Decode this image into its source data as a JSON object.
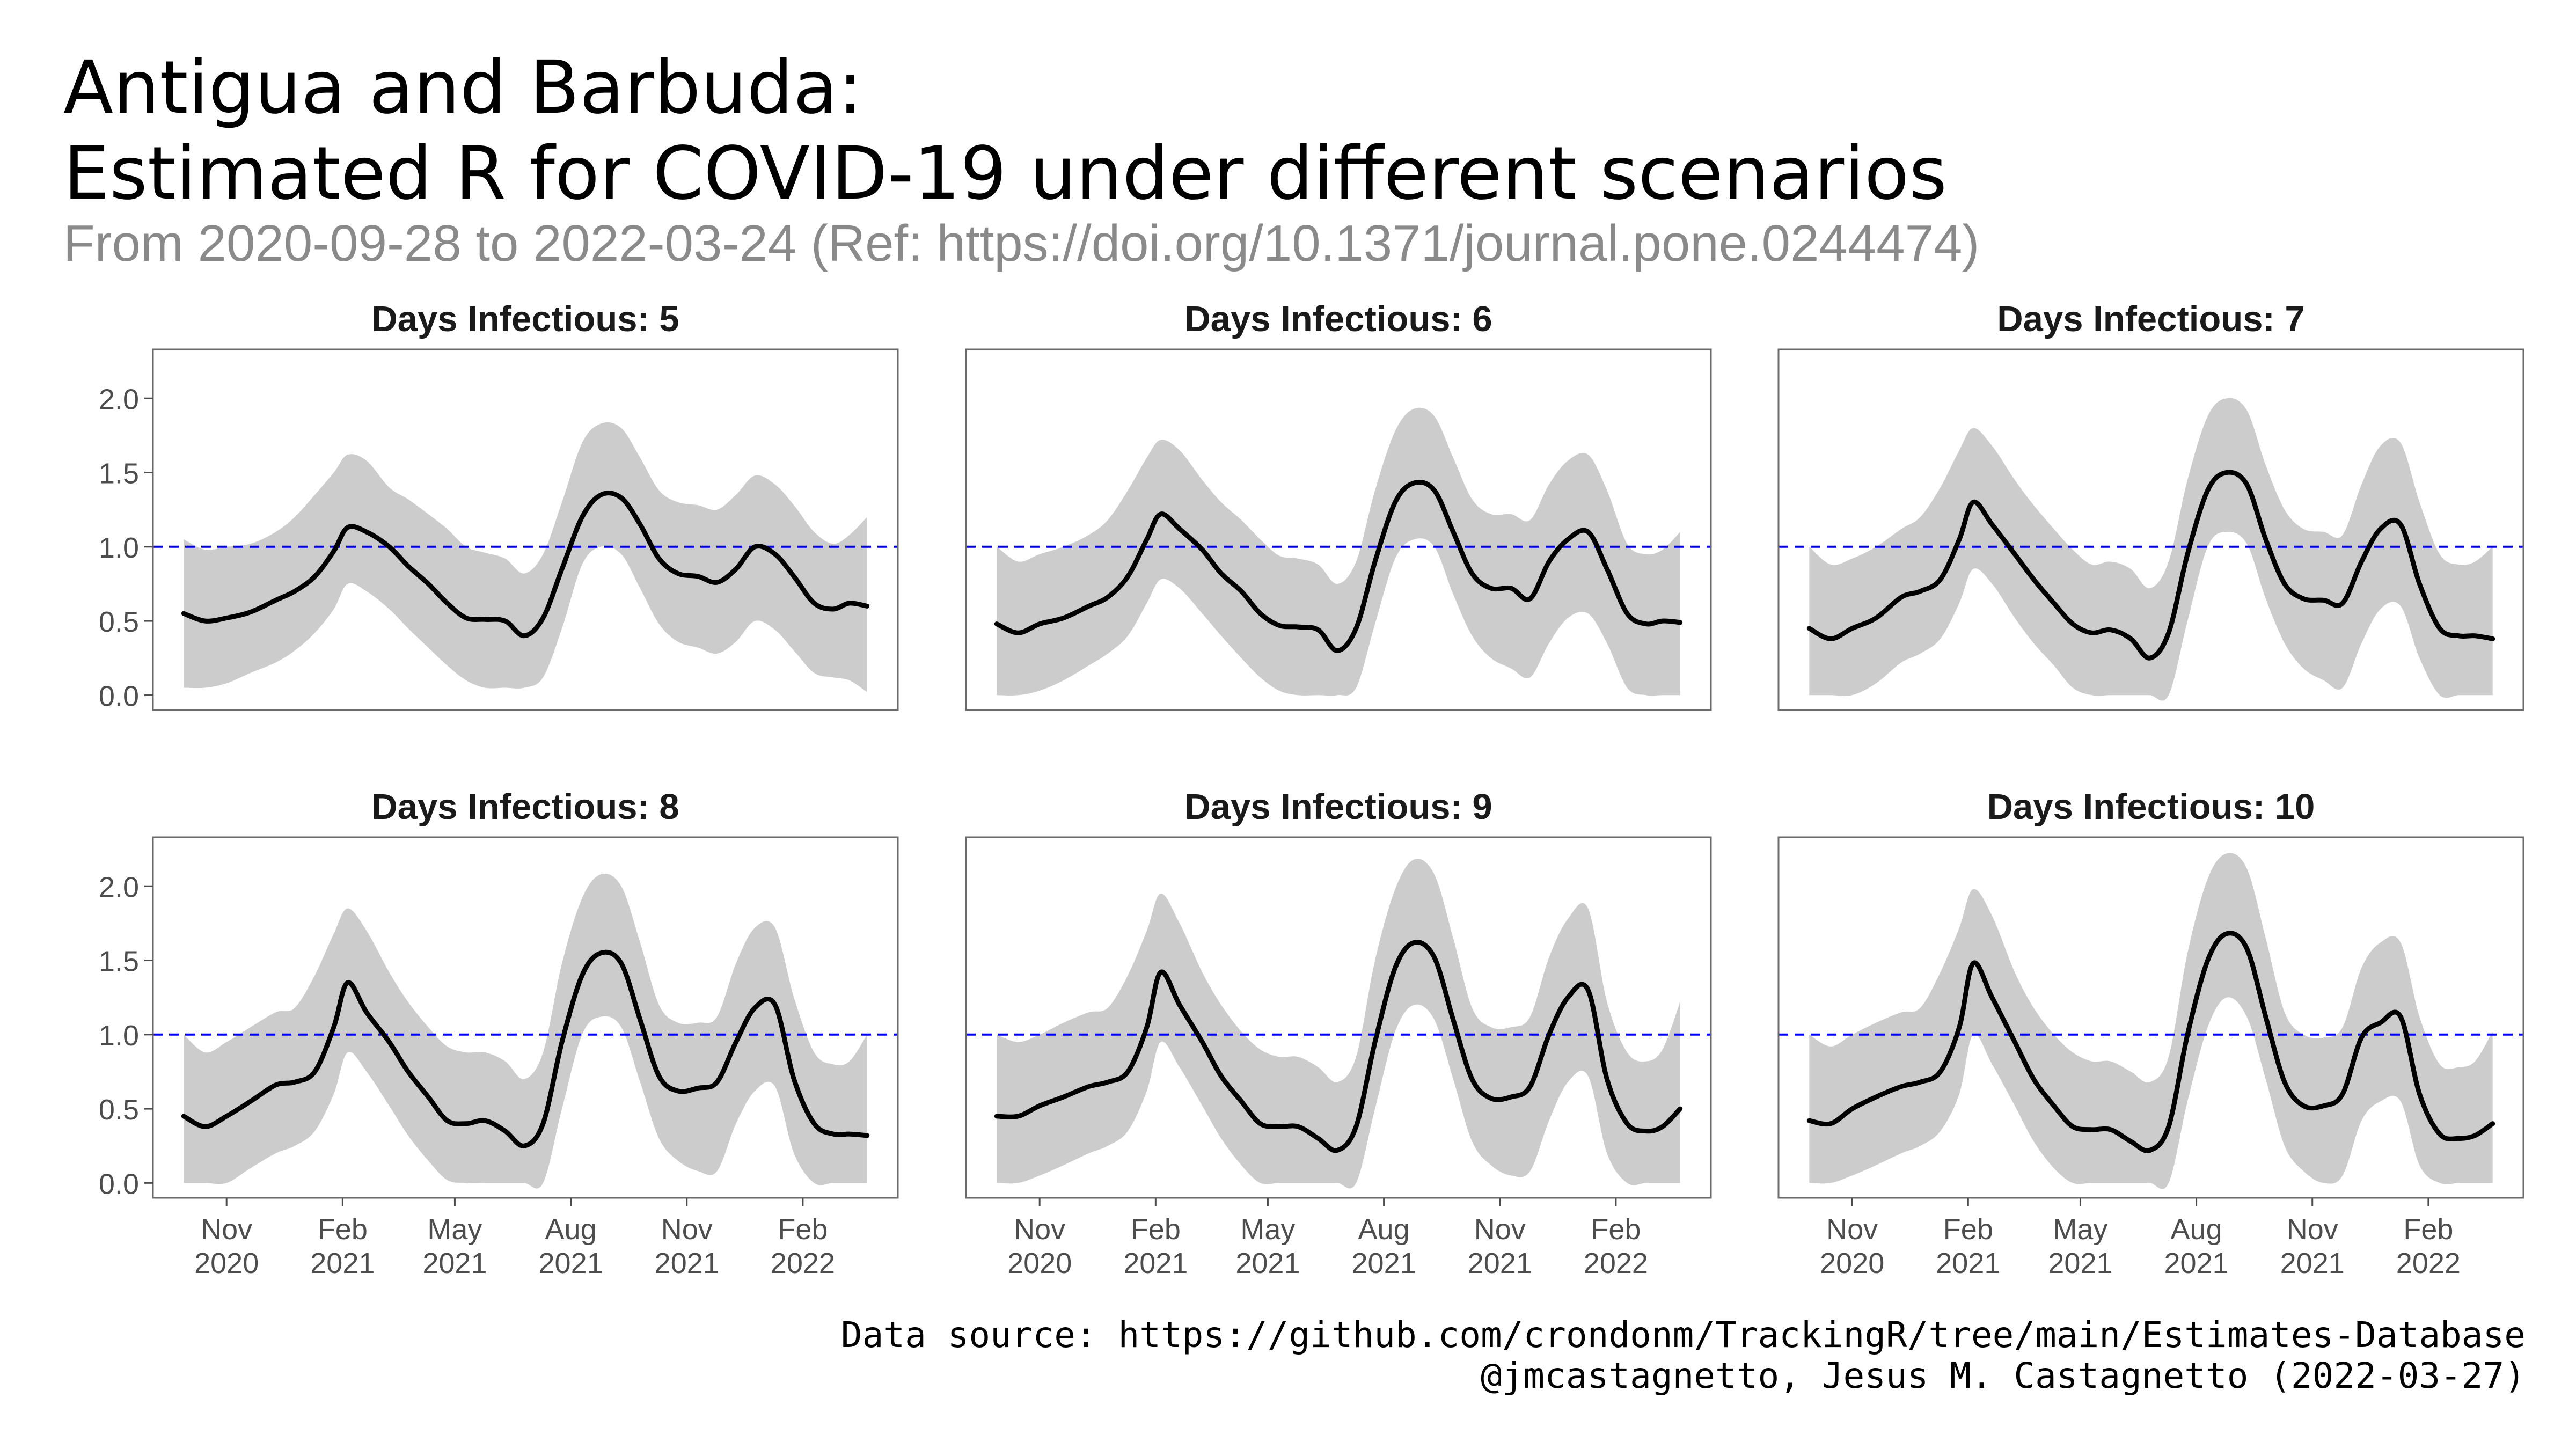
{
  "header": {
    "title_line1": "Antigua and Barbuda:",
    "title_line2": "Estimated R for COVID-19 under different scenarios",
    "subtitle": "From 2020-09-28 to 2022-03-24 (Ref: https://doi.org/10.1371/journal.pone.0244474)"
  },
  "caption": {
    "line1": "Data source: https://github.com/crondonm/TrackingR/tree/main/Estimates-Database",
    "line2": "@jmcastagnetto, Jesus M. Castagnetto (2022-03-27)"
  },
  "colors": {
    "ribbon": "#cccccc",
    "line": "#000000",
    "reference": "#0000ff",
    "panel_border": "#6b6b6b"
  },
  "chart_data": {
    "type": "line",
    "facet_by": "Days Infectious",
    "x_range": [
      "2020-09-28",
      "2022-03-24"
    ],
    "x_ticks": [
      {
        "date": "2020-11-01",
        "label": [
          "Nov",
          "2020"
        ]
      },
      {
        "date": "2021-02-01",
        "label": [
          "Feb",
          "2021"
        ]
      },
      {
        "date": "2021-05-01",
        "label": [
          "May",
          "2021"
        ]
      },
      {
        "date": "2021-08-01",
        "label": [
          "Aug",
          "2021"
        ]
      },
      {
        "date": "2021-11-01",
        "label": [
          "Nov",
          "2021"
        ]
      },
      {
        "date": "2022-02-01",
        "label": [
          "Feb",
          "2022"
        ]
      }
    ],
    "ylim": [
      -0.1,
      2.33
    ],
    "y_ticks": [
      0.0,
      0.5,
      1.0,
      1.5,
      2.0
    ],
    "y_tick_labels": [
      "0.0",
      "0.5",
      "1.0",
      "1.5",
      "2.0"
    ],
    "reference_line": 1.0,
    "grid": false,
    "panels": [
      {
        "title": "Days Infectious: 5",
        "x": [
          "2020-09-28",
          "2020-10-15",
          "2020-11-01",
          "2020-11-20",
          "2020-12-10",
          "2020-12-25",
          "2021-01-10",
          "2021-01-25",
          "2021-02-05",
          "2021-02-20",
          "2021-03-10",
          "2021-03-25",
          "2021-04-10",
          "2021-04-25",
          "2021-05-10",
          "2021-05-25",
          "2021-06-10",
          "2021-06-25",
          "2021-07-10",
          "2021-07-25",
          "2021-08-10",
          "2021-08-25",
          "2021-09-10",
          "2021-09-25",
          "2021-10-10",
          "2021-10-25",
          "2021-11-10",
          "2021-11-25",
          "2021-12-10",
          "2021-12-25",
          "2022-01-10",
          "2022-01-25",
          "2022-02-10",
          "2022-02-25",
          "2022-03-10",
          "2022-03-24"
        ],
        "r": [
          0.55,
          0.5,
          0.52,
          0.56,
          0.64,
          0.7,
          0.8,
          0.97,
          1.13,
          1.1,
          1.0,
          0.87,
          0.75,
          0.62,
          0.52,
          0.51,
          0.5,
          0.4,
          0.52,
          0.85,
          1.2,
          1.35,
          1.33,
          1.15,
          0.92,
          0.82,
          0.8,
          0.76,
          0.85,
          1.0,
          0.95,
          0.8,
          0.62,
          0.58,
          0.62,
          0.6
        ],
        "lower": [
          0.05,
          0.05,
          0.08,
          0.15,
          0.22,
          0.3,
          0.42,
          0.58,
          0.75,
          0.7,
          0.58,
          0.45,
          0.32,
          0.2,
          0.1,
          0.05,
          0.05,
          0.05,
          0.12,
          0.45,
          0.88,
          1.0,
          0.95,
          0.72,
          0.48,
          0.36,
          0.32,
          0.28,
          0.36,
          0.5,
          0.44,
          0.3,
          0.15,
          0.12,
          0.1,
          0.02
        ],
        "upper": [
          1.05,
          0.98,
          1.0,
          1.02,
          1.1,
          1.2,
          1.35,
          1.5,
          1.62,
          1.58,
          1.4,
          1.32,
          1.22,
          1.12,
          1.0,
          0.96,
          0.92,
          0.82,
          0.95,
          1.3,
          1.7,
          1.83,
          1.8,
          1.6,
          1.38,
          1.3,
          1.28,
          1.25,
          1.35,
          1.48,
          1.42,
          1.28,
          1.1,
          1.02,
          1.08,
          1.2
        ]
      },
      {
        "title": "Days Infectious: 6",
        "x": [
          "2020-09-28",
          "2020-10-15",
          "2020-11-01",
          "2020-11-20",
          "2020-12-10",
          "2020-12-25",
          "2021-01-10",
          "2021-01-25",
          "2021-02-05",
          "2021-02-20",
          "2021-03-10",
          "2021-03-25",
          "2021-04-10",
          "2021-04-25",
          "2021-05-10",
          "2021-05-25",
          "2021-06-10",
          "2021-06-25",
          "2021-07-10",
          "2021-07-25",
          "2021-08-10",
          "2021-08-25",
          "2021-09-10",
          "2021-09-25",
          "2021-10-10",
          "2021-10-25",
          "2021-11-10",
          "2021-11-25",
          "2021-12-10",
          "2021-12-25",
          "2022-01-10",
          "2022-01-25",
          "2022-02-10",
          "2022-02-25",
          "2022-03-10",
          "2022-03-24"
        ],
        "r": [
          0.48,
          0.42,
          0.48,
          0.52,
          0.6,
          0.66,
          0.8,
          1.05,
          1.22,
          1.12,
          0.98,
          0.82,
          0.7,
          0.55,
          0.47,
          0.46,
          0.44,
          0.3,
          0.45,
          0.9,
          1.3,
          1.43,
          1.38,
          1.1,
          0.82,
          0.72,
          0.72,
          0.65,
          0.9,
          1.05,
          1.1,
          0.85,
          0.55,
          0.48,
          0.5,
          0.49
        ],
        "lower": [
          0.0,
          0.0,
          0.03,
          0.1,
          0.2,
          0.28,
          0.4,
          0.62,
          0.78,
          0.72,
          0.55,
          0.4,
          0.25,
          0.12,
          0.03,
          0.0,
          0.0,
          0.0,
          0.05,
          0.48,
          0.92,
          1.05,
          1.0,
          0.68,
          0.4,
          0.25,
          0.18,
          0.12,
          0.35,
          0.52,
          0.55,
          0.35,
          0.05,
          0.0,
          0.0,
          0.0
        ],
        "upper": [
          1.0,
          0.9,
          0.95,
          1.0,
          1.08,
          1.18,
          1.38,
          1.6,
          1.72,
          1.65,
          1.45,
          1.3,
          1.18,
          1.05,
          0.94,
          0.92,
          0.88,
          0.75,
          0.9,
          1.38,
          1.78,
          1.93,
          1.88,
          1.6,
          1.32,
          1.22,
          1.22,
          1.18,
          1.42,
          1.58,
          1.62,
          1.38,
          1.02,
          0.95,
          0.98,
          1.1
        ]
      },
      {
        "title": "Days Infectious: 7",
        "x": [
          "2020-09-28",
          "2020-10-15",
          "2020-11-01",
          "2020-11-20",
          "2020-12-10",
          "2020-12-25",
          "2021-01-10",
          "2021-01-25",
          "2021-02-05",
          "2021-02-20",
          "2021-03-10",
          "2021-03-25",
          "2021-04-10",
          "2021-04-25",
          "2021-05-10",
          "2021-05-25",
          "2021-06-10",
          "2021-06-25",
          "2021-07-10",
          "2021-07-25",
          "2021-08-10",
          "2021-08-25",
          "2021-09-10",
          "2021-09-25",
          "2021-10-10",
          "2021-10-25",
          "2021-11-10",
          "2021-11-25",
          "2021-12-10",
          "2021-12-25",
          "2022-01-10",
          "2022-01-25",
          "2022-02-10",
          "2022-02-25",
          "2022-03-10",
          "2022-03-24"
        ],
        "r": [
          0.45,
          0.38,
          0.45,
          0.52,
          0.66,
          0.7,
          0.78,
          1.05,
          1.3,
          1.15,
          0.95,
          0.78,
          0.62,
          0.48,
          0.42,
          0.44,
          0.38,
          0.25,
          0.42,
          0.95,
          1.38,
          1.5,
          1.42,
          1.05,
          0.75,
          0.65,
          0.64,
          0.62,
          0.9,
          1.12,
          1.15,
          0.75,
          0.45,
          0.4,
          0.4,
          0.38
        ],
        "lower": [
          0.0,
          0.0,
          0.0,
          0.08,
          0.22,
          0.28,
          0.38,
          0.62,
          0.85,
          0.75,
          0.52,
          0.35,
          0.2,
          0.05,
          0.0,
          0.0,
          0.0,
          0.0,
          0.0,
          0.5,
          1.0,
          1.1,
          1.02,
          0.65,
          0.35,
          0.18,
          0.1,
          0.05,
          0.35,
          0.58,
          0.6,
          0.25,
          0.0,
          0.0,
          0.0,
          0.0
        ],
        "upper": [
          1.0,
          0.88,
          0.92,
          1.0,
          1.12,
          1.2,
          1.4,
          1.65,
          1.8,
          1.68,
          1.45,
          1.28,
          1.12,
          0.98,
          0.88,
          0.9,
          0.85,
          0.72,
          0.9,
          1.45,
          1.88,
          2.0,
          1.92,
          1.55,
          1.25,
          1.12,
          1.1,
          1.08,
          1.42,
          1.68,
          1.7,
          1.3,
          0.95,
          0.88,
          0.9,
          1.0
        ]
      },
      {
        "title": "Days Infectious: 8",
        "x": [
          "2020-09-28",
          "2020-10-15",
          "2020-11-01",
          "2020-11-20",
          "2020-12-10",
          "2020-12-25",
          "2021-01-10",
          "2021-01-25",
          "2021-02-05",
          "2021-02-20",
          "2021-03-10",
          "2021-03-25",
          "2021-04-10",
          "2021-04-25",
          "2021-05-10",
          "2021-05-25",
          "2021-06-10",
          "2021-06-25",
          "2021-07-10",
          "2021-07-25",
          "2021-08-10",
          "2021-08-25",
          "2021-09-10",
          "2021-09-25",
          "2021-10-10",
          "2021-10-25",
          "2021-11-10",
          "2021-11-25",
          "2021-12-10",
          "2021-12-25",
          "2022-01-10",
          "2022-01-25",
          "2022-02-10",
          "2022-02-25",
          "2022-03-10",
          "2022-03-24"
        ],
        "r": [
          0.45,
          0.38,
          0.45,
          0.55,
          0.66,
          0.68,
          0.75,
          1.05,
          1.35,
          1.15,
          0.95,
          0.75,
          0.58,
          0.42,
          0.4,
          0.42,
          0.35,
          0.25,
          0.4,
          0.95,
          1.4,
          1.55,
          1.48,
          1.1,
          0.72,
          0.62,
          0.64,
          0.68,
          0.95,
          1.18,
          1.2,
          0.7,
          0.4,
          0.33,
          0.33,
          0.32
        ],
        "lower": [
          0.0,
          0.0,
          0.0,
          0.1,
          0.2,
          0.25,
          0.35,
          0.6,
          0.88,
          0.75,
          0.52,
          0.32,
          0.15,
          0.02,
          0.0,
          0.0,
          0.0,
          0.0,
          0.0,
          0.5,
          1.0,
          1.12,
          1.05,
          0.68,
          0.3,
          0.15,
          0.08,
          0.08,
          0.4,
          0.62,
          0.65,
          0.2,
          0.0,
          0.0,
          0.0,
          0.0
        ],
        "upper": [
          1.0,
          0.88,
          0.95,
          1.05,
          1.15,
          1.18,
          1.4,
          1.68,
          1.85,
          1.7,
          1.42,
          1.22,
          1.05,
          0.92,
          0.88,
          0.88,
          0.82,
          0.7,
          0.88,
          1.48,
          1.92,
          2.08,
          2.0,
          1.62,
          1.2,
          1.08,
          1.08,
          1.12,
          1.48,
          1.72,
          1.72,
          1.25,
          0.88,
          0.8,
          0.82,
          1.0
        ]
      },
      {
        "title": "Days Infectious: 9",
        "x": [
          "2020-09-28",
          "2020-10-15",
          "2020-11-01",
          "2020-11-20",
          "2020-12-10",
          "2020-12-25",
          "2021-01-10",
          "2021-01-25",
          "2021-02-05",
          "2021-02-20",
          "2021-03-10",
          "2021-03-25",
          "2021-04-10",
          "2021-04-25",
          "2021-05-10",
          "2021-05-25",
          "2021-06-10",
          "2021-06-25",
          "2021-07-10",
          "2021-07-25",
          "2021-08-10",
          "2021-08-25",
          "2021-09-10",
          "2021-09-25",
          "2021-10-10",
          "2021-10-25",
          "2021-11-10",
          "2021-11-25",
          "2021-12-10",
          "2021-12-25",
          "2022-01-10",
          "2022-01-25",
          "2022-02-10",
          "2022-02-25",
          "2022-03-10",
          "2022-03-24"
        ],
        "r": [
          0.45,
          0.45,
          0.52,
          0.58,
          0.65,
          0.68,
          0.75,
          1.05,
          1.42,
          1.2,
          0.95,
          0.72,
          0.55,
          0.4,
          0.38,
          0.38,
          0.3,
          0.22,
          0.38,
          0.95,
          1.45,
          1.62,
          1.52,
          1.1,
          0.7,
          0.57,
          0.58,
          0.65,
          1.0,
          1.25,
          1.3,
          0.7,
          0.4,
          0.35,
          0.38,
          0.5
        ],
        "lower": [
          0.0,
          0.0,
          0.05,
          0.12,
          0.2,
          0.25,
          0.35,
          0.62,
          0.95,
          0.78,
          0.52,
          0.3,
          0.12,
          0.0,
          0.0,
          0.0,
          0.0,
          0.0,
          0.0,
          0.5,
          1.02,
          1.2,
          1.1,
          0.7,
          0.28,
          0.12,
          0.05,
          0.08,
          0.42,
          0.68,
          0.72,
          0.2,
          0.0,
          0.0,
          0.0,
          0.0
        ],
        "upper": [
          1.0,
          0.95,
          1.0,
          1.08,
          1.15,
          1.18,
          1.4,
          1.7,
          1.95,
          1.75,
          1.42,
          1.2,
          1.02,
          0.9,
          0.85,
          0.85,
          0.78,
          0.68,
          0.85,
          1.5,
          1.98,
          2.18,
          2.08,
          1.65,
          1.18,
          1.05,
          1.05,
          1.12,
          1.52,
          1.78,
          1.85,
          1.22,
          0.88,
          0.82,
          0.9,
          1.22
        ]
      },
      {
        "title": "Days Infectious: 10",
        "x": [
          "2020-09-28",
          "2020-10-15",
          "2020-11-01",
          "2020-11-20",
          "2020-12-10",
          "2020-12-25",
          "2021-01-10",
          "2021-01-25",
          "2021-02-05",
          "2021-02-20",
          "2021-03-10",
          "2021-03-25",
          "2021-04-10",
          "2021-04-25",
          "2021-05-10",
          "2021-05-25",
          "2021-06-10",
          "2021-06-25",
          "2021-07-10",
          "2021-07-25",
          "2021-08-10",
          "2021-08-25",
          "2021-09-10",
          "2021-09-25",
          "2021-10-10",
          "2021-10-25",
          "2021-11-10",
          "2021-11-25",
          "2021-12-10",
          "2021-12-25",
          "2022-01-10",
          "2022-01-25",
          "2022-02-10",
          "2022-02-25",
          "2022-03-10",
          "2022-03-24"
        ],
        "r": [
          0.42,
          0.4,
          0.5,
          0.58,
          0.65,
          0.68,
          0.75,
          1.05,
          1.48,
          1.25,
          0.95,
          0.7,
          0.52,
          0.38,
          0.36,
          0.36,
          0.28,
          0.22,
          0.38,
          1.0,
          1.5,
          1.68,
          1.58,
          1.12,
          0.68,
          0.52,
          0.52,
          0.6,
          0.98,
          1.08,
          1.12,
          0.6,
          0.33,
          0.3,
          0.32,
          0.4
        ],
        "lower": [
          0.0,
          0.0,
          0.05,
          0.12,
          0.2,
          0.25,
          0.35,
          0.6,
          1.0,
          0.8,
          0.52,
          0.28,
          0.1,
          0.0,
          0.0,
          0.0,
          0.0,
          0.0,
          0.0,
          0.55,
          1.05,
          1.25,
          1.12,
          0.7,
          0.25,
          0.08,
          0.0,
          0.05,
          0.42,
          0.55,
          0.55,
          0.12,
          0.0,
          0.0,
          0.0,
          0.0
        ],
        "upper": [
          1.0,
          0.92,
          1.0,
          1.08,
          1.15,
          1.18,
          1.42,
          1.72,
          1.98,
          1.8,
          1.42,
          1.18,
          1.0,
          0.88,
          0.82,
          0.82,
          0.75,
          0.68,
          0.85,
          1.55,
          2.05,
          2.22,
          2.12,
          1.65,
          1.15,
          1.0,
          0.98,
          1.05,
          1.45,
          1.62,
          1.62,
          1.12,
          0.8,
          0.78,
          0.82,
          1.02
        ]
      }
    ]
  }
}
